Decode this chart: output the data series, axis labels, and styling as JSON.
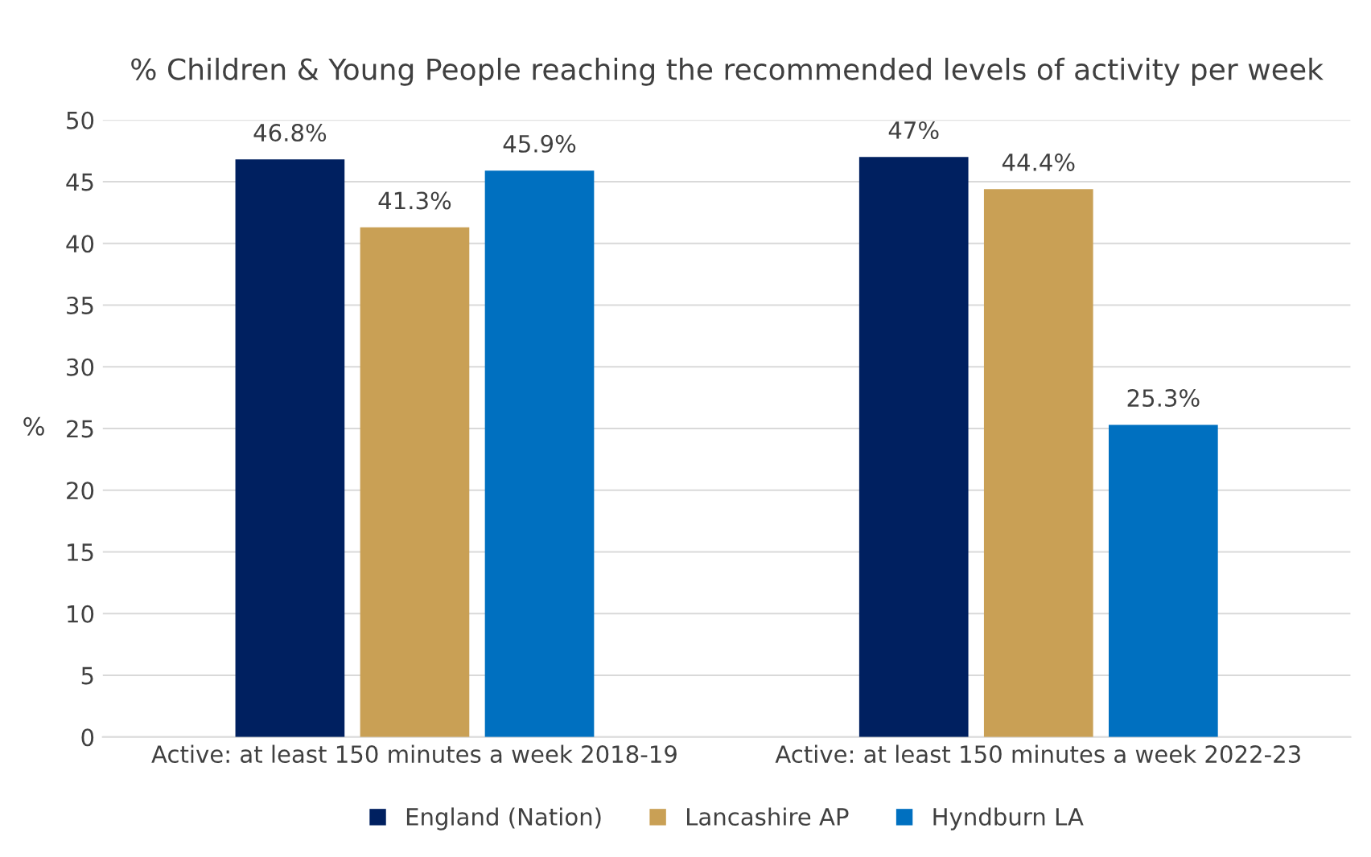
{
  "chart_data": {
    "type": "bar",
    "title": "% Children & Young People reaching the recommended levels of activity per week",
    "categories": [
      "Active: at least 150 minutes a week 2018-19",
      "Active: at least 150 minutes a week 2022-23"
    ],
    "series": [
      {
        "name": "England (Nation)",
        "color": "#002060",
        "values": [
          46.8,
          47
        ],
        "value_labels": [
          "46.8%",
          "47%"
        ]
      },
      {
        "name": "Lancashire AP",
        "color": "#c9a055",
        "values": [
          41.3,
          44.4
        ],
        "value_labels": [
          "41.3%",
          "44.4%"
        ]
      },
      {
        "name": "Hyndburn LA",
        "color": "#0070c0",
        "values": [
          45.9,
          25.3
        ],
        "value_labels": [
          "45.9%",
          "25.3%"
        ]
      }
    ],
    "ylabel": "%",
    "ylim": [
      0,
      50
    ],
    "yticks": [
      0,
      5,
      10,
      15,
      20,
      25,
      30,
      35,
      40,
      45,
      50
    ],
    "grid": "y",
    "legend": "bottom"
  }
}
